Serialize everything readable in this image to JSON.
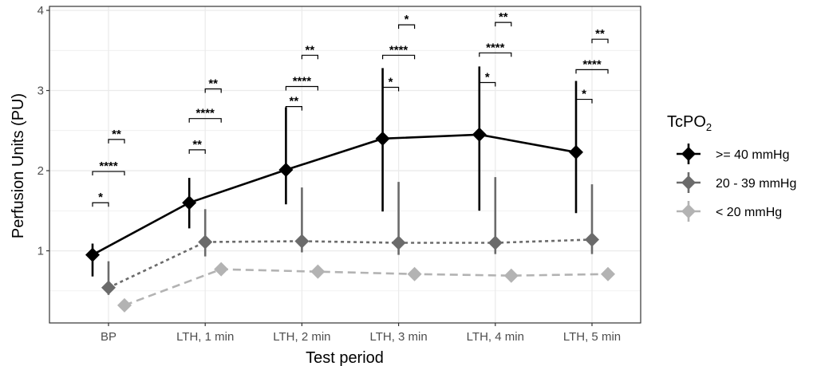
{
  "chart_data": {
    "type": "line",
    "xlabel": "Test period",
    "ylabel": "Perfusion Units (PU)",
    "ylim": [
      0.1,
      4.05
    ],
    "yticks": [
      "1",
      "2",
      "3",
      "4"
    ],
    "categories": [
      "BP",
      "LTH, 1 min",
      "LTH, 2 min",
      "LTH, 3 min",
      "LTH, 4 min",
      "LTH, 5 min"
    ],
    "grid": true,
    "legend": {
      "title": "TcPO",
      "title_subscript": "2",
      "placement": "right"
    },
    "series": [
      {
        "name": ">= 40 mmHg",
        "color": "#000000",
        "line_style": "solid",
        "values": [
          0.95,
          1.6,
          2.01,
          2.4,
          2.45,
          2.23
        ],
        "error_low": [
          0.68,
          1.28,
          1.58,
          1.49,
          1.5,
          1.47
        ],
        "error_high": [
          1.09,
          1.91,
          2.79,
          3.28,
          3.3,
          3.12
        ]
      },
      {
        "name": "20 - 39 mmHg",
        "color": "#6b6b6b",
        "line_style": "dotted",
        "values": [
          0.54,
          1.11,
          1.12,
          1.1,
          1.1,
          1.14
        ],
        "error_low": [
          0.45,
          0.93,
          0.98,
          0.95,
          0.96,
          0.96
        ],
        "error_high": [
          0.87,
          1.52,
          1.79,
          1.86,
          1.92,
          1.83
        ]
      },
      {
        "name": "< 20 mmHg",
        "color": "#b3b3b3",
        "line_style": "dashed",
        "values": [
          0.32,
          0.77,
          0.74,
          0.71,
          0.69,
          0.71
        ],
        "error_low": [
          0.3,
          0.73,
          0.71,
          0.68,
          0.66,
          0.68
        ],
        "error_high": [
          0.34,
          0.82,
          0.77,
          0.74,
          0.72,
          0.74
        ]
      }
    ],
    "significance": [
      {
        "category": 0,
        "from": ">= 40 mmHg",
        "to": "20 - 39 mmHg",
        "label": "*",
        "y": 1.6
      },
      {
        "category": 0,
        "from": ">= 40 mmHg",
        "to": "< 20 mmHg",
        "label": "****",
        "y": 1.99
      },
      {
        "category": 0,
        "from": "20 - 39 mmHg",
        "to": "< 20 mmHg",
        "label": "**",
        "y": 2.39
      },
      {
        "category": 1,
        "from": ">= 40 mmHg",
        "to": "20 - 39 mmHg",
        "label": "**",
        "y": 2.26
      },
      {
        "category": 1,
        "from": ">= 40 mmHg",
        "to": "< 20 mmHg",
        "label": "****",
        "y": 2.65
      },
      {
        "category": 1,
        "from": "20 - 39 mmHg",
        "to": "< 20 mmHg",
        "label": "**",
        "y": 3.02
      },
      {
        "category": 2,
        "from": ">= 40 mmHg",
        "to": "20 - 39 mmHg",
        "label": "**",
        "y": 2.8
      },
      {
        "category": 2,
        "from": ">= 40 mmHg",
        "to": "< 20 mmHg",
        "label": "****",
        "y": 3.05
      },
      {
        "category": 2,
        "from": "20 - 39 mmHg",
        "to": "< 20 mmHg",
        "label": "**",
        "y": 3.44
      },
      {
        "category": 3,
        "from": ">= 40 mmHg",
        "to": "20 - 39 mmHg",
        "label": "*",
        "y": 3.04
      },
      {
        "category": 3,
        "from": ">= 40 mmHg",
        "to": "< 20 mmHg",
        "label": "****",
        "y": 3.44
      },
      {
        "category": 3,
        "from": "20 - 39 mmHg",
        "to": "< 20 mmHg",
        "label": "*",
        "y": 3.82
      },
      {
        "category": 4,
        "from": ">= 40 mmHg",
        "to": "20 - 39 mmHg",
        "label": "*",
        "y": 3.1
      },
      {
        "category": 4,
        "from": ">= 40 mmHg",
        "to": "< 20 mmHg",
        "label": "****",
        "y": 3.47
      },
      {
        "category": 4,
        "from": "20 - 39 mmHg",
        "to": "< 20 mmHg",
        "label": "**",
        "y": 3.85
      },
      {
        "category": 5,
        "from": ">= 40 mmHg",
        "to": "20 - 39 mmHg",
        "label": "*",
        "y": 2.89
      },
      {
        "category": 5,
        "from": ">= 40 mmHg",
        "to": "< 20 mmHg",
        "label": "****",
        "y": 3.26
      },
      {
        "category": 5,
        "from": "20 - 39 mmHg",
        "to": "< 20 mmHg",
        "label": "**",
        "y": 3.64
      }
    ]
  }
}
